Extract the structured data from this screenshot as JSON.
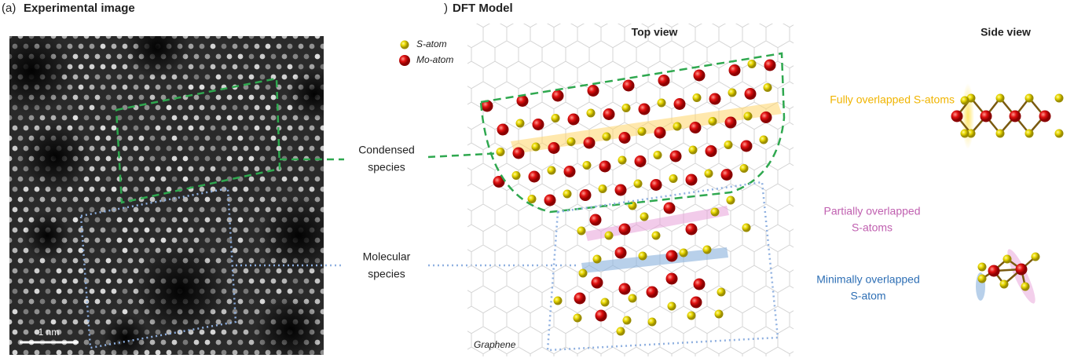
{
  "panel_a": {
    "label": "(a)",
    "title": "Experimental image",
    "scale_bar": "1 nm"
  },
  "callouts": [
    {
      "lines": [
        "Condensed",
        "species"
      ]
    },
    {
      "lines": [
        "Molecular",
        "species"
      ]
    }
  ],
  "panel_b": {
    "label": ")",
    "title": "DFT Model",
    "legend": [
      "S-atom",
      "Mo-atom"
    ],
    "top_view": "Top view",
    "side_view": "Side view",
    "substrate": "Graphene",
    "annotations": [
      {
        "lines": [
          "Fully overlapped S-atoms"
        ]
      },
      {
        "lines": [
          "Partially overlapped",
          "S-atoms"
        ]
      },
      {
        "lines": [
          "Minimally overlapped",
          "S-atom"
        ]
      }
    ]
  }
}
